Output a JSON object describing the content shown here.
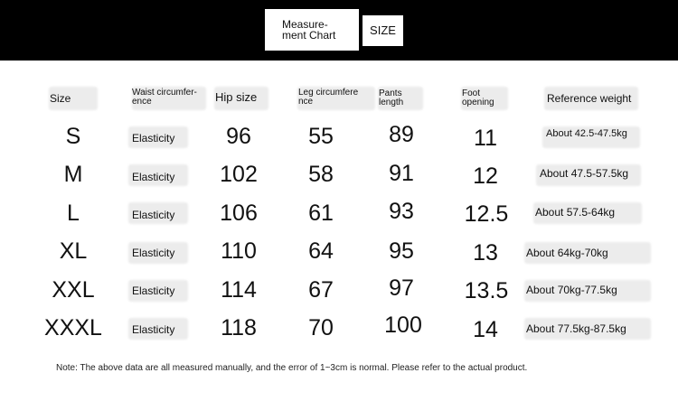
{
  "banner": {
    "title_line1": "Measure-",
    "title_line2": "ment Chart",
    "size_label": "SIZE"
  },
  "headers": {
    "size": "Size",
    "waist_line1": "Waist circumfer-",
    "waist_line2": "ence",
    "hip": "Hip size",
    "leg_line1": "Leg circumfere",
    "leg_line2": "nce",
    "pants_line1": "Pants",
    "pants_line2": "length",
    "foot_line1": "Foot",
    "foot_line2": "opening",
    "weight": "Reference weight"
  },
  "rows": [
    {
      "size": "S",
      "waist": "Elasticity",
      "hip": "96",
      "leg": "55",
      "pants": "89",
      "foot": "11",
      "weight": "About 42.5-47.5kg"
    },
    {
      "size": "M",
      "waist": "Elasticity",
      "hip": "102",
      "leg": "58",
      "pants": "91",
      "foot": "12",
      "weight": "About 47.5-57.5kg"
    },
    {
      "size": "L",
      "waist": "Elasticity",
      "hip": "106",
      "leg": "61",
      "pants": "93",
      "foot": "12.5",
      "weight": "About 57.5-64kg"
    },
    {
      "size": "XL",
      "waist": "Elasticity",
      "hip": "110",
      "leg": "64",
      "pants": "95",
      "foot": "13",
      "weight": "About 64kg-70kg"
    },
    {
      "size": "XXL",
      "waist": "Elasticity",
      "hip": "114",
      "leg": "67",
      "pants": "97",
      "foot": "13.5",
      "weight": "About 70kg-77.5kg"
    },
    {
      "size": "XXXL",
      "waist": "Elasticity",
      "hip": "118",
      "leg": "70",
      "pants": "100",
      "foot": "14",
      "weight": "About 77.5kg-87.5kg"
    }
  ],
  "note": "Note: The above data are all measured manually, and the error of 1~3cm is normal. Please refer to the actual product."
}
